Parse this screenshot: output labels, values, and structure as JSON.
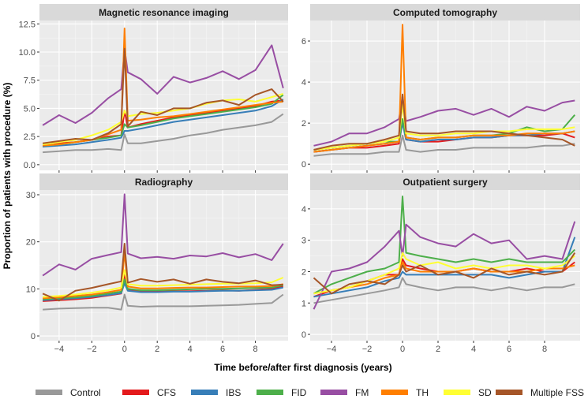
{
  "chart_data": {
    "type": "line",
    "xlabel": "Time before/after first diagnosis (years)",
    "ylabel": "Proportion of patients with procedure (%)",
    "xlim": [
      -5.2,
      10
    ],
    "x_ticks": [
      -4,
      -2,
      0,
      2,
      4,
      6,
      8
    ],
    "colors": {
      "Control": "#999999",
      "CFS": "#e41a1c",
      "IBS": "#377eb8",
      "FID": "#4daf4a",
      "FM": "#984ea3",
      "TH": "#ff7f00",
      "SD": "#ffff33",
      "Multiple FSS": "#a65628"
    },
    "legend": [
      "Control",
      "CFS",
      "IBS",
      "FID",
      "FM",
      "TH",
      "SD",
      "Multiple FSS"
    ],
    "series_x": [
      -5,
      -4,
      -3,
      -2,
      -1,
      -0.2,
      0,
      0.2,
      1,
      2,
      3,
      4,
      5,
      6,
      7,
      8,
      9,
      9.7
    ],
    "panels": [
      {
        "title": "Magnetic resonance imaging",
        "ylim": [
          -0.5,
          12.8
        ],
        "y_ticks": [
          0.0,
          2.5,
          5.0,
          7.5,
          10.0,
          12.5
        ],
        "y_tick_labels": [
          "0.0",
          "2.5",
          "5.0",
          "7.5",
          "10.0",
          "12.5"
        ],
        "series": [
          {
            "name": "Control",
            "values": [
              1.1,
              1.2,
              1.3,
              1.3,
              1.4,
              1.3,
              2.7,
              1.9,
              1.9,
              2.1,
              2.3,
              2.6,
              2.8,
              3.1,
              3.3,
              3.5,
              3.8,
              4.5
            ]
          },
          {
            "name": "CFS",
            "values": [
              1.6,
              1.9,
              2.0,
              2.2,
              2.5,
              2.6,
              4.8,
              3.3,
              3.6,
              3.9,
              4.2,
              4.4,
              4.6,
              4.8,
              5.0,
              5.2,
              5.6,
              5.7
            ]
          },
          {
            "name": "IBS",
            "values": [
              1.6,
              1.7,
              1.8,
              2.0,
              2.2,
              2.4,
              3.0,
              3.0,
              3.2,
              3.5,
              3.8,
              4.0,
              4.2,
              4.4,
              4.6,
              4.8,
              5.2,
              5.8
            ]
          },
          {
            "name": "FID",
            "values": [
              1.7,
              1.8,
              2.0,
              2.2,
              2.4,
              2.6,
              3.6,
              3.3,
              3.5,
              3.8,
              4.1,
              4.3,
              4.5,
              4.7,
              4.9,
              5.1,
              5.4,
              6.2
            ]
          },
          {
            "name": "FM",
            "values": [
              3.5,
              4.4,
              3.7,
              4.6,
              5.9,
              6.7,
              10.3,
              8.2,
              7.6,
              6.3,
              7.8,
              7.3,
              7.7,
              8.3,
              7.6,
              8.4,
              10.6,
              6.8
            ]
          },
          {
            "name": "TH",
            "values": [
              1.7,
              1.8,
              2.0,
              2.2,
              2.7,
              3.1,
              12.1,
              3.9,
              4.0,
              4.2,
              4.3,
              4.5,
              4.7,
              4.9,
              5.1,
              5.3,
              5.5,
              5.6
            ]
          },
          {
            "name": "SD",
            "values": [
              1.8,
              2.0,
              2.2,
              2.6,
              3.1,
              3.8,
              4.8,
              4.3,
              4.5,
              4.6,
              4.8,
              5.0,
              5.4,
              5.7,
              5.8,
              5.6,
              6.0,
              6.3
            ]
          },
          {
            "name": "Multiple FSS",
            "values": [
              1.9,
              2.1,
              2.3,
              2.2,
              2.8,
              3.6,
              10.3,
              3.4,
              4.7,
              4.4,
              5.0,
              5.0,
              5.5,
              5.7,
              5.3,
              6.2,
              6.7,
              5.6
            ]
          }
        ]
      },
      {
        "title": "Computed tomography",
        "ylim": [
          -0.3,
          7.0
        ],
        "y_ticks": [
          0,
          2,
          4,
          6
        ],
        "y_tick_labels": [
          "0",
          "2",
          "4",
          "6"
        ],
        "series": [
          {
            "name": "Control",
            "values": [
              0.4,
              0.5,
              0.5,
              0.5,
              0.6,
              0.6,
              1.4,
              0.7,
              0.6,
              0.7,
              0.7,
              0.8,
              0.8,
              0.8,
              0.8,
              0.9,
              0.9,
              1.0
            ]
          },
          {
            "name": "CFS",
            "values": [
              0.6,
              0.7,
              0.8,
              0.8,
              0.9,
              1.0,
              2.1,
              1.2,
              1.1,
              1.1,
              1.2,
              1.3,
              1.3,
              1.4,
              1.4,
              1.4,
              1.5,
              1.3
            ]
          },
          {
            "name": "IBS",
            "values": [
              0.6,
              0.7,
              0.8,
              0.9,
              1.0,
              1.1,
              2.0,
              1.2,
              1.1,
              1.2,
              1.2,
              1.3,
              1.3,
              1.4,
              1.4,
              1.5,
              1.5,
              1.6
            ]
          },
          {
            "name": "FID",
            "values": [
              0.7,
              0.8,
              0.9,
              1.0,
              1.1,
              1.1,
              2.2,
              1.3,
              1.2,
              1.3,
              1.3,
              1.4,
              1.4,
              1.5,
              1.8,
              1.6,
              1.7,
              2.4
            ]
          },
          {
            "name": "FM",
            "values": [
              0.9,
              1.1,
              1.5,
              1.5,
              1.8,
              2.2,
              3.3,
              2.1,
              2.3,
              2.6,
              2.7,
              2.4,
              2.7,
              2.3,
              2.8,
              2.6,
              3.0,
              3.1
            ]
          },
          {
            "name": "TH",
            "values": [
              0.6,
              0.7,
              0.8,
              0.9,
              1.0,
              1.1,
              6.8,
              1.3,
              1.2,
              1.3,
              1.3,
              1.4,
              1.4,
              1.4,
              1.5,
              1.5,
              1.5,
              1.6
            ]
          },
          {
            "name": "SD",
            "values": [
              0.7,
              0.8,
              0.9,
              1.0,
              1.1,
              1.3,
              2.9,
              1.5,
              1.4,
              1.4,
              1.5,
              1.5,
              1.6,
              1.6,
              1.7,
              1.7,
              1.7,
              1.8
            ]
          },
          {
            "name": "Multiple FSS",
            "values": [
              0.7,
              0.9,
              1.0,
              1.0,
              1.2,
              1.4,
              3.4,
              1.6,
              1.5,
              1.5,
              1.6,
              1.6,
              1.6,
              1.5,
              1.4,
              1.3,
              1.2,
              0.9
            ]
          }
        ]
      },
      {
        "title": "Radiography",
        "ylim": [
          -1.0,
          31.0
        ],
        "y_ticks": [
          0,
          10,
          20,
          30
        ],
        "y_tick_labels": [
          "0",
          "10",
          "20",
          "30"
        ],
        "series": [
          {
            "name": "Control",
            "values": [
              5.6,
              5.8,
              5.9,
              6.0,
              6.0,
              5.6,
              8.8,
              6.4,
              6.2,
              6.3,
              6.3,
              6.3,
              6.4,
              6.5,
              6.6,
              6.8,
              7.0,
              8.8
            ]
          },
          {
            "name": "CFS",
            "values": [
              7.4,
              7.6,
              7.8,
              8.1,
              8.6,
              9.0,
              13.2,
              9.8,
              9.5,
              9.4,
              9.5,
              9.5,
              9.6,
              9.7,
              9.6,
              9.8,
              10.0,
              10.5
            ]
          },
          {
            "name": "IBS",
            "values": [
              7.6,
              7.8,
              8.0,
              8.3,
              8.7,
              9.1,
              11.2,
              9.6,
              9.3,
              9.3,
              9.4,
              9.4,
              9.5,
              9.6,
              9.6,
              9.7,
              9.8,
              10.3
            ]
          },
          {
            "name": "FID",
            "values": [
              7.8,
              8.0,
              8.2,
              8.5,
              9.0,
              9.4,
              12.0,
              10.0,
              9.7,
              9.7,
              9.8,
              9.9,
              10.0,
              10.0,
              10.1,
              10.2,
              10.3,
              10.8
            ]
          },
          {
            "name": "FM",
            "values": [
              12.8,
              15.2,
              14.1,
              16.4,
              17.2,
              17.8,
              30.1,
              17.5,
              16.5,
              16.8,
              16.4,
              17.1,
              16.9,
              17.6,
              16.7,
              17.4,
              16.1,
              19.6
            ]
          },
          {
            "name": "TH",
            "values": [
              8.0,
              8.2,
              8.5,
              8.8,
              9.3,
              9.8,
              17.8,
              10.5,
              10.1,
              10.1,
              10.2,
              10.3,
              10.3,
              10.4,
              10.5,
              10.5,
              10.6,
              11.0
            ]
          },
          {
            "name": "SD",
            "values": [
              8.3,
              8.5,
              8.8,
              9.2,
              9.7,
              10.3,
              14.0,
              11.0,
              10.7,
              10.7,
              10.8,
              10.9,
              11.0,
              11.1,
              11.1,
              11.2,
              11.4,
              12.4
            ]
          },
          {
            "name": "Multiple FSS",
            "values": [
              9.0,
              7.5,
              9.6,
              10.2,
              11.0,
              11.6,
              19.6,
              11.3,
              12.1,
              11.5,
              12.0,
              11.1,
              12.0,
              11.5,
              11.2,
              11.8,
              10.8,
              10.9
            ]
          }
        ]
      },
      {
        "title": "Outpatient surgery",
        "ylim": [
          -0.2,
          4.6
        ],
        "y_ticks": [
          0,
          1,
          2,
          3,
          4
        ],
        "y_tick_labels": [
          "0",
          "1",
          "2",
          "3",
          "4"
        ],
        "series": [
          {
            "name": "Control",
            "values": [
              1.0,
              1.1,
              1.2,
              1.3,
              1.4,
              1.5,
              1.8,
              1.6,
              1.5,
              1.4,
              1.5,
              1.5,
              1.4,
              1.5,
              1.4,
              1.5,
              1.5,
              1.6
            ]
          },
          {
            "name": "CFS",
            "values": [
              1.2,
              1.4,
              1.5,
              1.7,
              1.9,
              1.9,
              2.4,
              2.2,
              2.1,
              2.0,
              2.0,
              2.1,
              2.0,
              2.0,
              2.1,
              2.0,
              2.0,
              2.3
            ]
          },
          {
            "name": "IBS",
            "values": [
              1.2,
              1.3,
              1.4,
              1.5,
              1.7,
              1.8,
              2.0,
              1.9,
              1.9,
              1.9,
              1.9,
              1.9,
              1.9,
              1.8,
              1.9,
              2.0,
              2.0,
              3.1
            ]
          },
          {
            "name": "FID",
            "values": [
              1.3,
              1.6,
              1.8,
              2.0,
              2.1,
              2.3,
              4.4,
              2.6,
              2.5,
              2.4,
              2.3,
              2.4,
              2.3,
              2.4,
              2.3,
              2.3,
              2.3,
              2.7
            ]
          },
          {
            "name": "FM",
            "values": [
              0.8,
              2.0,
              2.1,
              2.3,
              2.8,
              3.3,
              2.5,
              3.5,
              3.1,
              2.9,
              2.8,
              3.2,
              2.9,
              3.0,
              2.4,
              2.5,
              2.4,
              3.6
            ]
          },
          {
            "name": "TH",
            "values": [
              1.3,
              1.4,
              1.5,
              1.6,
              1.8,
              1.9,
              2.3,
              2.1,
              2.0,
              2.0,
              2.0,
              2.1,
              2.0,
              2.0,
              2.0,
              2.1,
              2.1,
              2.2
            ]
          },
          {
            "name": "SD",
            "values": [
              1.3,
              1.4,
              1.5,
              1.7,
              1.9,
              2.1,
              2.6,
              2.4,
              2.2,
              2.3,
              2.1,
              2.2,
              2.1,
              2.2,
              2.2,
              2.1,
              2.2,
              2.5
            ]
          },
          {
            "name": "Multiple FSS",
            "values": [
              1.8,
              1.3,
              1.6,
              1.7,
              1.6,
              1.9,
              2.2,
              2.0,
              2.2,
              1.9,
              2.0,
              1.8,
              2.1,
              1.9,
              2.0,
              1.9,
              2.0,
              2.6
            ]
          }
        ]
      }
    ]
  }
}
